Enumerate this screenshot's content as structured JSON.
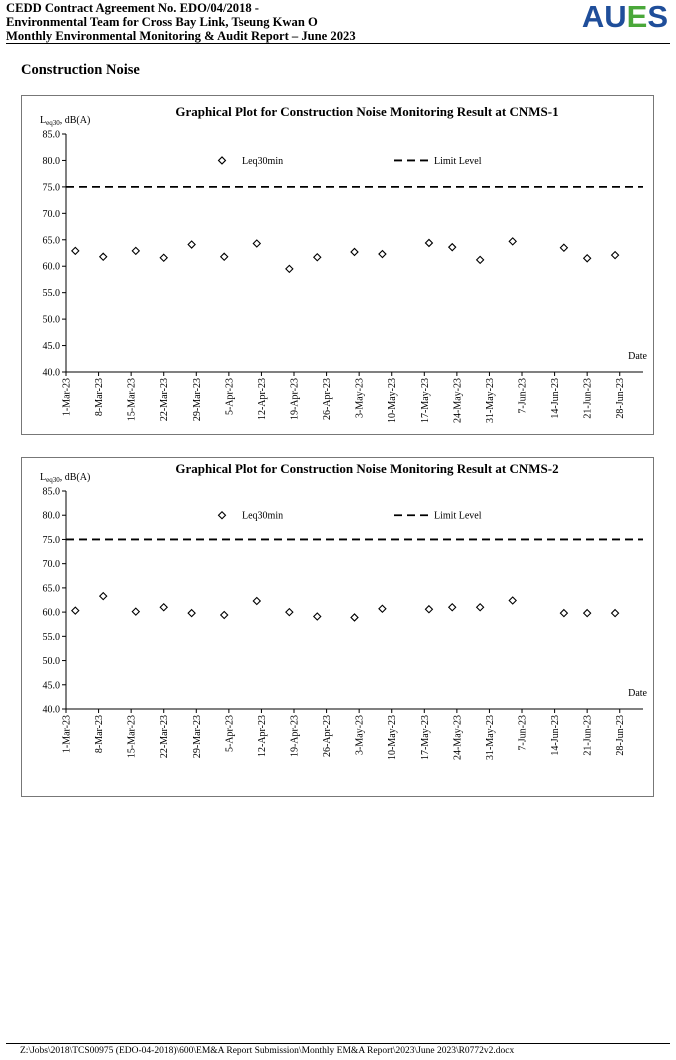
{
  "header": {
    "line1": "CEDD Contract Agreement No. EDO/04/2018 -",
    "line2": "Environmental Team for Cross Bay Link, Tseung Kwan O",
    "line3": "Monthly Environmental Monitoring & Audit Report – June 2023",
    "logo_text": "AUES",
    "logo_colors": {
      "A": "#1f4e9a",
      "U": "#1f4e9a",
      "E": "#4aa83a",
      "S": "#1f4e9a"
    }
  },
  "section_title": "Construction Noise",
  "footer": {
    "path": "Z:\\Jobs\\2018\\TCS00975 (EDO-04-2018)\\600\\EM&A Report Submission\\Monthly EM&A Report\\2023\\June 2023\\R0772v2.docx"
  },
  "chart_data": [
    {
      "type": "scatter",
      "title": "Graphical Plot for Construction Noise Monitoring Result at CNMS-1",
      "ylabel_main": "L",
      "ylabel_sub": "eq30",
      "ylabel_rest": ", dB(A)",
      "xlabel": "Date",
      "ylim": [
        40.0,
        85.0
      ],
      "yticks": [
        "40.0",
        "45.0",
        "50.0",
        "55.0",
        "60.0",
        "65.0",
        "70.0",
        "75.0",
        "80.0",
        "85.0"
      ],
      "xticks": [
        "1-Mar-23",
        "8-Mar-23",
        "15-Mar-23",
        "22-Mar-23",
        "29-Mar-23",
        "5-Apr-23",
        "12-Apr-23",
        "19-Apr-23",
        "26-Apr-23",
        "3-May-23",
        "10-May-23",
        "17-May-23",
        "24-May-23",
        "31-May-23",
        "7-Jun-23",
        "14-Jun-23",
        "21-Jun-23",
        "28-Jun-23"
      ],
      "xrange": [
        "2023-03-01",
        "2023-07-03"
      ],
      "limit_level": 75,
      "legend": {
        "series_label": "Leq30min",
        "limit_label": "Limit Level",
        "position": "top"
      },
      "series": [
        {
          "name": "Leq30min",
          "marker": "diamond",
          "points": [
            [
              "2023-03-03",
              62.9
            ],
            [
              "2023-03-09",
              61.8
            ],
            [
              "2023-03-16",
              62.9
            ],
            [
              "2023-03-22",
              61.6
            ],
            [
              "2023-03-28",
              64.1
            ],
            [
              "2023-04-04",
              61.8
            ],
            [
              "2023-04-11",
              64.3
            ],
            [
              "2023-04-18",
              59.5
            ],
            [
              "2023-04-24",
              61.7
            ],
            [
              "2023-05-02",
              62.7
            ],
            [
              "2023-05-08",
              62.3
            ],
            [
              "2023-05-18",
              64.4
            ],
            [
              "2023-05-23",
              63.6
            ],
            [
              "2023-05-29",
              61.2
            ],
            [
              "2023-06-05",
              64.7
            ],
            [
              "2023-06-16",
              63.5
            ],
            [
              "2023-06-21",
              61.5
            ],
            [
              "2023-06-27",
              62.1
            ]
          ]
        }
      ]
    },
    {
      "type": "scatter",
      "title": "Graphical Plot for Construction Noise Monitoring Result at CNMS-2",
      "ylabel_main": "L",
      "ylabel_sub": "eq30",
      "ylabel_rest": ", dB(A)",
      "xlabel": "Date",
      "ylim": [
        40.0,
        85.0
      ],
      "yticks": [
        "40.0",
        "45.0",
        "50.0",
        "55.0",
        "60.0",
        "65.0",
        "70.0",
        "75.0",
        "80.0",
        "85.0"
      ],
      "xticks": [
        "1-Mar-23",
        "8-Mar-23",
        "15-Mar-23",
        "22-Mar-23",
        "29-Mar-23",
        "5-Apr-23",
        "12-Apr-23",
        "19-Apr-23",
        "26-Apr-23",
        "3-May-23",
        "10-May-23",
        "17-May-23",
        "24-May-23",
        "31-May-23",
        "7-Jun-23",
        "14-Jun-23",
        "21-Jun-23",
        "28-Jun-23"
      ],
      "xrange": [
        "2023-03-01",
        "2023-07-03"
      ],
      "limit_level": 75,
      "legend": {
        "series_label": "Leq30min",
        "limit_label": "Limit Level",
        "position": "top"
      },
      "series": [
        {
          "name": "Leq30min",
          "marker": "diamond",
          "points": [
            [
              "2023-03-03",
              60.3
            ],
            [
              "2023-03-09",
              63.3
            ],
            [
              "2023-03-16",
              60.1
            ],
            [
              "2023-03-22",
              61.0
            ],
            [
              "2023-03-28",
              59.8
            ],
            [
              "2023-04-04",
              59.4
            ],
            [
              "2023-04-11",
              62.3
            ],
            [
              "2023-04-18",
              60.0
            ],
            [
              "2023-04-24",
              59.1
            ],
            [
              "2023-05-02",
              58.9
            ],
            [
              "2023-05-08",
              60.7
            ],
            [
              "2023-05-18",
              60.6
            ],
            [
              "2023-05-23",
              61.0
            ],
            [
              "2023-05-29",
              61.0
            ],
            [
              "2023-06-05",
              62.4
            ],
            [
              "2023-06-16",
              59.8
            ],
            [
              "2023-06-21",
              59.8
            ],
            [
              "2023-06-27",
              59.8
            ]
          ]
        }
      ]
    }
  ]
}
